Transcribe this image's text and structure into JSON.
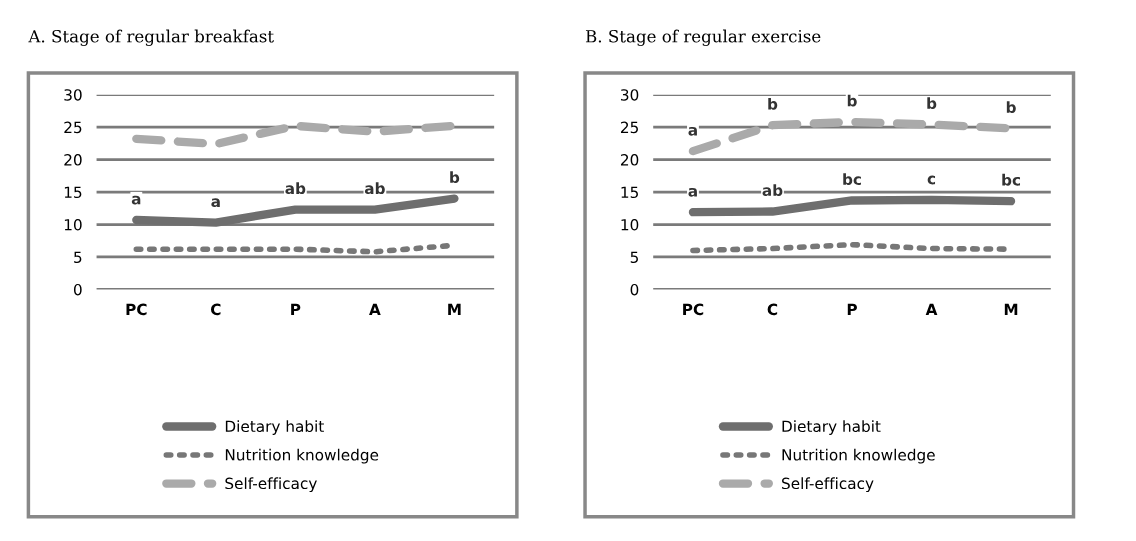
{
  "chart_data": [
    {
      "type": "line",
      "title": "A. Stage of regular breakfast",
      "categories": [
        "PC",
        "C",
        "P",
        "A",
        "M"
      ],
      "ylim": [
        0,
        30
      ],
      "yticks": [
        0,
        5,
        10,
        15,
        20,
        25,
        30
      ],
      "grid": "y",
      "legend": "bottom",
      "series": [
        {
          "name": "Dietary habit",
          "color": "#6e6e6e",
          "line_style": "solid",
          "values": [
            10.7,
            10.3,
            12.3,
            12.3,
            14.0
          ]
        },
        {
          "name": "Nutrition knowledge",
          "color": "#777777",
          "line_style": "dotted",
          "values": [
            6.2,
            6.2,
            6.2,
            5.8,
            6.8
          ]
        },
        {
          "name": "Self-efficacy",
          "color": "#aaaaaa",
          "line_style": "dashed",
          "values": [
            23.2,
            22.4,
            25.2,
            24.3,
            25.2
          ]
        }
      ],
      "annotations": [
        {
          "text": "a",
          "x": "PC",
          "y": 10.7
        },
        {
          "text": "a",
          "x": "C",
          "y": 10.3
        },
        {
          "text": "ab",
          "x": "P",
          "y": 12.3
        },
        {
          "text": "ab",
          "x": "A",
          "y": 12.3
        },
        {
          "text": "b",
          "x": "M",
          "y": 14.0
        }
      ]
    },
    {
      "type": "line",
      "title": "B. Stage of regular exercise",
      "categories": [
        "PC",
        "C",
        "P",
        "A",
        "M"
      ],
      "ylim": [
        0,
        30
      ],
      "yticks": [
        0,
        5,
        10,
        15,
        20,
        25,
        30
      ],
      "grid": "y",
      "legend": "bottom",
      "series": [
        {
          "name": "Dietary habit",
          "color": "#6e6e6e",
          "line_style": "solid",
          "values": [
            11.9,
            12.0,
            13.7,
            13.8,
            13.6
          ]
        },
        {
          "name": "Nutrition knowledge",
          "color": "#777777",
          "line_style": "dotted",
          "values": [
            6.0,
            6.3,
            6.9,
            6.3,
            6.2
          ]
        },
        {
          "name": "Self-efficacy",
          "color": "#aaaaaa",
          "line_style": "dashed",
          "values": [
            21.3,
            25.3,
            25.8,
            25.4,
            24.8
          ]
        }
      ],
      "annotations": [
        {
          "text": "a",
          "x": "PC",
          "y": 11.9
        },
        {
          "text": "ab",
          "x": "C",
          "y": 12.0
        },
        {
          "text": "bc",
          "x": "P",
          "y": 13.7
        },
        {
          "text": "c",
          "x": "A",
          "y": 13.8
        },
        {
          "text": "bc",
          "x": "M",
          "y": 13.6
        },
        {
          "text": "a",
          "x": "PC",
          "y": 21.3
        },
        {
          "text": "b",
          "x": "C",
          "y": 25.3
        },
        {
          "text": "b",
          "x": "P",
          "y": 25.8
        },
        {
          "text": "b",
          "x": "A",
          "y": 25.4
        },
        {
          "text": "b",
          "x": "M",
          "y": 24.8
        }
      ]
    }
  ]
}
